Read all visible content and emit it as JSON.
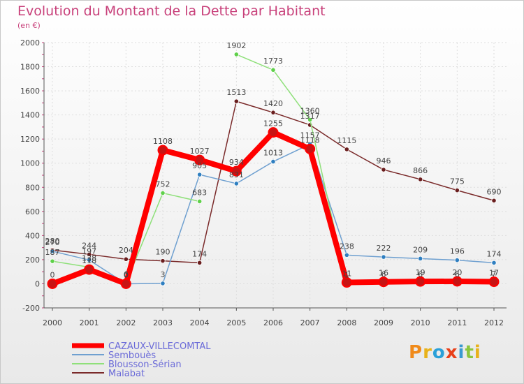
{
  "header": {
    "title": "Evolution du Montant de la Dette par Habitant",
    "unit": "(en €)"
  },
  "logo": {
    "text": "Proxiti"
  },
  "colors": {
    "title": "#c8407a",
    "axis": "#555555",
    "grid": "#dddddd",
    "label": "#444444"
  },
  "chart_data": {
    "type": "line",
    "title": "Evolution du Montant de la Dette par Habitant",
    "subtitle": "(en €)",
    "xlabel": "",
    "ylabel": "",
    "ylim": [
      -200,
      2000
    ],
    "yticks": [
      -200,
      0,
      200,
      400,
      600,
      800,
      1000,
      1200,
      1400,
      1600,
      1800,
      2000
    ],
    "grid": true,
    "x": [
      "2000",
      "2001",
      "2002",
      "2003",
      "2004",
      "2005",
      "2006",
      "2007",
      "2008",
      "2009",
      "2010",
      "2011",
      "2012"
    ],
    "series": [
      {
        "name": "CAZAUX-VILLECOMTAL",
        "color": "#ff0000",
        "marker": "#c81414",
        "values": [
          0,
          118,
          0,
          1108,
          1027,
          934,
          1255,
          1118,
          11,
          16,
          19,
          20,
          17
        ],
        "labels": [
          "0",
          "118",
          "0",
          "1108",
          "1027",
          "934",
          "1255",
          "1118",
          "11",
          "16",
          "19",
          "20",
          "17"
        ]
      },
      {
        "name": "Sembouès",
        "color": "#6fa0d0",
        "marker": "#2f7fc0",
        "values": [
          270,
          197,
          0,
          3,
          905,
          831,
          1013,
          1157,
          238,
          222,
          209,
          196,
          174
        ],
        "labels": [
          "270",
          "197",
          "0",
          "3",
          "905",
          "831",
          "1013",
          "1157",
          "238",
          "222",
          "209",
          "196",
          "174"
        ]
      },
      {
        "name": "Blousson-Sérian",
        "color": "#8fe07a",
        "marker": "#5fd04a",
        "values": [
          187,
          138,
          6,
          752,
          683,
          1902,
          1773,
          1360,
          1,
          6,
          6,
          6,
          7
        ],
        "labels": [
          "187",
          "138",
          "6",
          "752",
          "683",
          "1902",
          "1773",
          "1360",
          "1",
          "6",
          "6",
          "6",
          "7"
        ]
      },
      {
        "name": "Malabat",
        "color": "#7a2a2a",
        "marker": "#6a1e1e",
        "values": [
          280,
          244,
          204,
          190,
          174,
          1513,
          1420,
          1317,
          1115,
          946,
          866,
          775,
          690
        ],
        "labels": [
          "280",
          "244",
          "204",
          "190",
          "174",
          "1513",
          "1420",
          "1317",
          "1115",
          "946",
          "866",
          "775",
          "690"
        ]
      }
    ],
    "gaps": {
      "Blousson-Sérian": [
        "2004-2005"
      ]
    },
    "legend_position": "bottom-left"
  }
}
